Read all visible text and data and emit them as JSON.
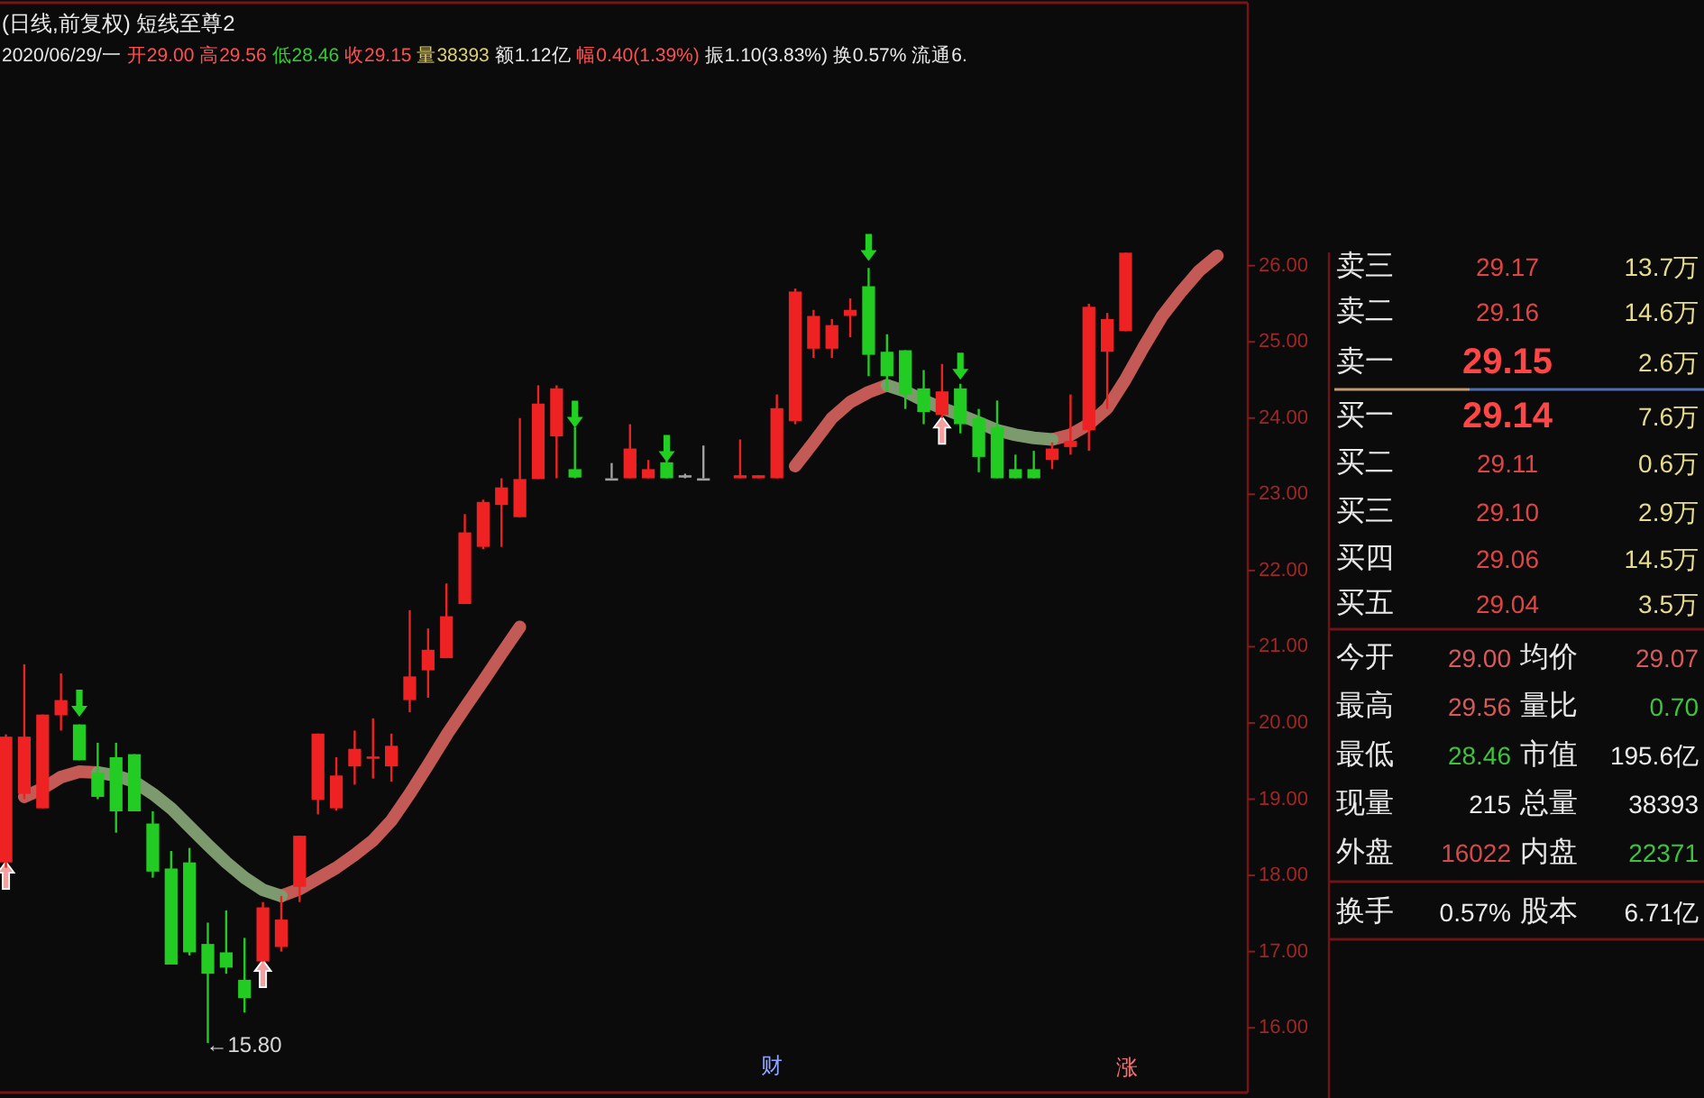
{
  "chart_data": [
    {
      "type": "candlestick",
      "title": "(日线,前复权) 短线至尊2",
      "subtitle": "2020/06/29/一 开29.00 高29.56 低28.46 收29.15 量38393 额1.12亿 幅0.40(1.39%) 振1.10(3.83%) 换0.57% 流通6.",
      "categories": [
        null,
        null,
        null,
        null,
        null,
        null,
        null,
        null,
        null,
        null,
        null,
        null,
        null,
        null,
        null,
        null,
        null,
        null,
        null,
        null,
        null,
        null,
        null,
        null,
        null,
        null,
        null,
        null,
        null,
        null,
        null,
        null,
        null,
        null,
        null,
        null,
        null,
        null,
        null,
        null,
        null,
        null,
        null,
        null,
        null,
        null,
        null,
        null,
        null,
        null,
        null,
        null,
        null,
        null,
        null,
        null,
        null,
        null,
        null,
        null,
        null,
        null,
        null,
        null,
        null,
        null,
        null,
        null
      ],
      "ohlc": [
        [
          18.17,
          19.85,
          18.1,
          19.82
        ],
        [
          19.07,
          20.77,
          19.0,
          19.82
        ],
        [
          18.88,
          20.11,
          18.88,
          20.11
        ],
        [
          20.1,
          20.65,
          19.9,
          20.3
        ],
        [
          19.98,
          19.98,
          19.51,
          19.51
        ],
        [
          19.35,
          19.74,
          19.0,
          19.03
        ],
        [
          19.55,
          19.74,
          18.56,
          18.84
        ],
        [
          19.59,
          19.59,
          18.84,
          18.84
        ],
        [
          18.68,
          18.84,
          17.97,
          18.05
        ],
        [
          18.09,
          18.32,
          16.83,
          16.83
        ],
        [
          18.17,
          18.36,
          16.95,
          16.99
        ],
        [
          17.1,
          17.38,
          15.8,
          16.71
        ],
        [
          16.99,
          17.54,
          16.71,
          16.79
        ],
        [
          16.63,
          17.18,
          16.2,
          16.39
        ],
        [
          16.87,
          17.65,
          16.87,
          17.58
        ],
        [
          17.06,
          17.73,
          17.0,
          17.42
        ],
        [
          17.85,
          18.52,
          17.65,
          18.52
        ],
        [
          18.99,
          19.86,
          18.8,
          19.86
        ],
        [
          18.88,
          19.55,
          18.85,
          19.31
        ],
        [
          19.43,
          19.9,
          19.19,
          19.66
        ],
        [
          19.54,
          20.06,
          19.27,
          19.56
        ],
        [
          19.43,
          19.86,
          19.23,
          19.7
        ],
        [
          20.3,
          21.48,
          20.14,
          20.61
        ],
        [
          20.69,
          21.24,
          20.33,
          20.96
        ],
        [
          20.85,
          21.83,
          20.85,
          21.4
        ],
        [
          21.56,
          22.74,
          21.56,
          22.5
        ],
        [
          22.31,
          22.93,
          22.28,
          22.9
        ],
        [
          22.86,
          23.21,
          22.31,
          23.09
        ],
        [
          22.7,
          24.0,
          22.7,
          23.2
        ],
        [
          23.2,
          24.43,
          23.2,
          24.19
        ],
        [
          23.76,
          24.43,
          23.21,
          24.39
        ],
        [
          23.33,
          23.88,
          23.21,
          23.22
        ],
        null,
        [
          23.21,
          23.41,
          23.21,
          23.21
        ],
        [
          23.21,
          23.92,
          23.21,
          23.6
        ],
        [
          23.21,
          23.45,
          23.21,
          23.33
        ],
        [
          23.42,
          23.45,
          23.21,
          23.21
        ],
        [
          23.25,
          23.27,
          23.21,
          23.25
        ],
        [
          23.21,
          23.64,
          23.21,
          23.21
        ],
        null,
        [
          23.21,
          23.72,
          23.21,
          23.25
        ],
        [
          23.21,
          23.25,
          23.21,
          23.25
        ],
        [
          23.21,
          24.31,
          23.21,
          24.13
        ],
        [
          23.96,
          25.7,
          23.92,
          25.66
        ],
        [
          24.91,
          25.42,
          24.79,
          25.34
        ],
        [
          24.91,
          25.3,
          24.79,
          25.22
        ],
        [
          25.34,
          25.57,
          25.06,
          25.42
        ],
        [
          25.73,
          25.97,
          24.55,
          24.83
        ],
        [
          24.87,
          25.1,
          24.35,
          24.55
        ],
        [
          24.89,
          24.89,
          24.12,
          24.31
        ],
        [
          24.39,
          24.63,
          23.92,
          24.08
        ],
        [
          24.04,
          24.71,
          24.0,
          24.35
        ],
        [
          24.39,
          24.45,
          23.8,
          23.92
        ],
        [
          24.0,
          24.12,
          23.29,
          23.49
        ],
        [
          23.88,
          24.23,
          23.21,
          23.21
        ],
        [
          23.33,
          23.52,
          23.21,
          23.21
        ],
        [
          23.33,
          23.57,
          23.21,
          23.21
        ],
        [
          23.45,
          23.68,
          23.33,
          23.6
        ],
        [
          23.62,
          24.31,
          23.52,
          23.7
        ],
        [
          23.84,
          25.5,
          23.57,
          25.46
        ],
        [
          24.87,
          25.38,
          24.12,
          25.3
        ],
        [
          25.14,
          26.17,
          25.14,
          26.17
        ],
        null,
        null,
        null,
        null,
        null,
        null
      ],
      "colors": [
        "#ee2222",
        "#ee2222",
        "#ee2222",
        "#ee2222",
        "#22cc22",
        "#22cc22",
        "#22cc22",
        "#22cc22",
        "#22cc22",
        "#22cc22",
        "#22cc22",
        "#22cc22",
        "#22cc22",
        "#22cc22",
        "#ee2222",
        "#ee2222",
        "#ee2222",
        "#ee2222",
        "#ee2222",
        "#ee2222",
        "#ee2222",
        "#ee2222",
        "#ee2222",
        "#ee2222",
        "#ee2222",
        "#ee2222",
        "#ee2222",
        "#ee2222",
        "#ee2222",
        "#ee2222",
        "#ee2222",
        "#22cc22",
        null,
        "#a0a0a0",
        "#ee2222",
        "#ee2222",
        "#22cc22",
        "#a0a0a0",
        "#a0a0a0",
        null,
        "#ee2222",
        "#ee2222",
        "#ee2222",
        "#ee2222",
        "#ee2222",
        "#ee2222",
        "#ee2222",
        "#22cc22",
        "#22cc22",
        "#22cc22",
        "#22cc22",
        "#ee2222",
        "#22cc22",
        "#22cc22",
        "#22cc22",
        "#22cc22",
        "#22cc22",
        "#ee2222",
        "#ee2222",
        "#ee2222",
        "#ee2222",
        "#ee2222",
        null,
        null,
        null,
        null,
        null,
        null
      ],
      "series": [
        {
          "type": "line",
          "color": "#c45a55",
          "values": [
            null,
            19.03,
            19.14,
            19.29,
            19.36,
            19.35,
            null,
            null,
            null,
            null,
            null,
            null,
            null,
            null,
            null,
            17.73,
            17.82,
            17.96,
            18.1,
            18.27,
            18.46,
            18.72,
            19.07,
            19.45,
            19.84,
            20.2,
            20.55,
            20.91,
            21.26,
            null,
            null,
            null,
            null,
            null,
            null,
            null,
            null,
            null,
            null,
            null,
            null,
            null,
            null,
            23.37,
            23.68,
            24.0,
            24.21,
            24.34,
            24.43,
            null,
            null,
            null,
            null,
            null,
            null,
            null,
            null,
            23.72,
            23.78,
            23.92,
            24.13,
            24.51,
            24.94,
            25.34,
            25.65,
            25.93,
            26.13,
            null
          ]
        },
        {
          "type": "line",
          "color": "#7d9a6e",
          "values": [
            null,
            null,
            null,
            null,
            null,
            19.35,
            19.31,
            19.23,
            19.07,
            18.88,
            18.64,
            18.4,
            18.17,
            17.97,
            17.81,
            17.73,
            null,
            null,
            null,
            null,
            null,
            null,
            null,
            null,
            null,
            null,
            null,
            null,
            null,
            null,
            null,
            null,
            null,
            null,
            null,
            null,
            null,
            null,
            null,
            null,
            null,
            null,
            null,
            null,
            null,
            null,
            null,
            null,
            24.43,
            24.35,
            24.23,
            24.13,
            24.04,
            23.94,
            23.84,
            23.78,
            23.74,
            23.72,
            null,
            null,
            null,
            null,
            null,
            null,
            null,
            null,
            null,
            null
          ]
        },
        {
          "type": "scatter",
          "color": "#f2a0a0",
          "marker": "triangle",
          "values": [
            18.0,
            null,
            null,
            null,
            null,
            null,
            null,
            null,
            null,
            null,
            null,
            null,
            null,
            null,
            16.71,
            null,
            null,
            null,
            null,
            null,
            null,
            null,
            null,
            null,
            null,
            null,
            null,
            null,
            null,
            null,
            null,
            null,
            null,
            null,
            null,
            null,
            null,
            null,
            null,
            null,
            null,
            null,
            null,
            null,
            null,
            null,
            null,
            null,
            null,
            null,
            null,
            23.84,
            null,
            null,
            null,
            null,
            null,
            null,
            null,
            null,
            null,
            null,
            null,
            null,
            null,
            null,
            null,
            null
          ]
        },
        {
          "type": "scatter",
          "color": "#22d022",
          "marker": "triangle",
          "values": [
            null,
            null,
            null,
            null,
            20.26,
            null,
            null,
            null,
            null,
            null,
            null,
            null,
            null,
            null,
            null,
            null,
            null,
            null,
            null,
            null,
            null,
            null,
            null,
            null,
            null,
            null,
            null,
            null,
            null,
            null,
            null,
            24.05,
            null,
            null,
            null,
            null,
            23.6,
            null,
            null,
            null,
            null,
            null,
            null,
            null,
            null,
            null,
            null,
            26.24,
            null,
            null,
            null,
            null,
            24.68,
            null,
            null,
            null,
            null,
            null,
            null,
            null,
            null,
            null,
            null,
            null,
            null,
            null,
            null,
            null
          ]
        }
      ],
      "ylim": [
        15.15,
        29.45
      ],
      "yticks": [
        {
          "value": 16,
          "label": "16.00"
        },
        {
          "value": 17,
          "label": "17.00"
        },
        {
          "value": 18,
          "label": "18.00"
        },
        {
          "value": 19,
          "label": "19.00"
        },
        {
          "value": 20,
          "label": "20.00"
        },
        {
          "value": 21,
          "label": "21.00"
        },
        {
          "value": 22,
          "label": "22.00"
        },
        {
          "value": 23,
          "label": "23.00"
        },
        {
          "value": 24,
          "label": "24.00"
        },
        {
          "value": 25,
          "label": "25.00"
        },
        {
          "value": 26,
          "label": "26.00"
        }
      ],
      "tick_labels": "y",
      "annotations": [
        "←15.80",
        "财",
        "涨"
      ]
    },
    {
      "type": "other",
      "annotations": [
        "卖三",
        "29.17",
        "13.7万",
        "卖二",
        "29.16",
        "14.6万",
        "卖一",
        "29.15",
        "2.6万",
        "买一",
        "29.14",
        "7.6万",
        "买二",
        "29.11",
        "0.6万",
        "买三",
        "29.10",
        "2.9万",
        "买四",
        "29.06",
        "14.5万",
        "买五",
        "29.04",
        "3.5万",
        "今开",
        "29.00",
        "均价",
        "29.07",
        "最高",
        "29.56",
        "量比",
        "0.70",
        "最低",
        "28.46",
        "市值",
        "195.6亿",
        "现量",
        "215",
        "总量",
        "38393",
        "外盘",
        "16022",
        "内盘",
        "22371",
        "换手",
        "0.57%",
        "股本",
        "6.71亿"
      ]
    }
  ]
}
